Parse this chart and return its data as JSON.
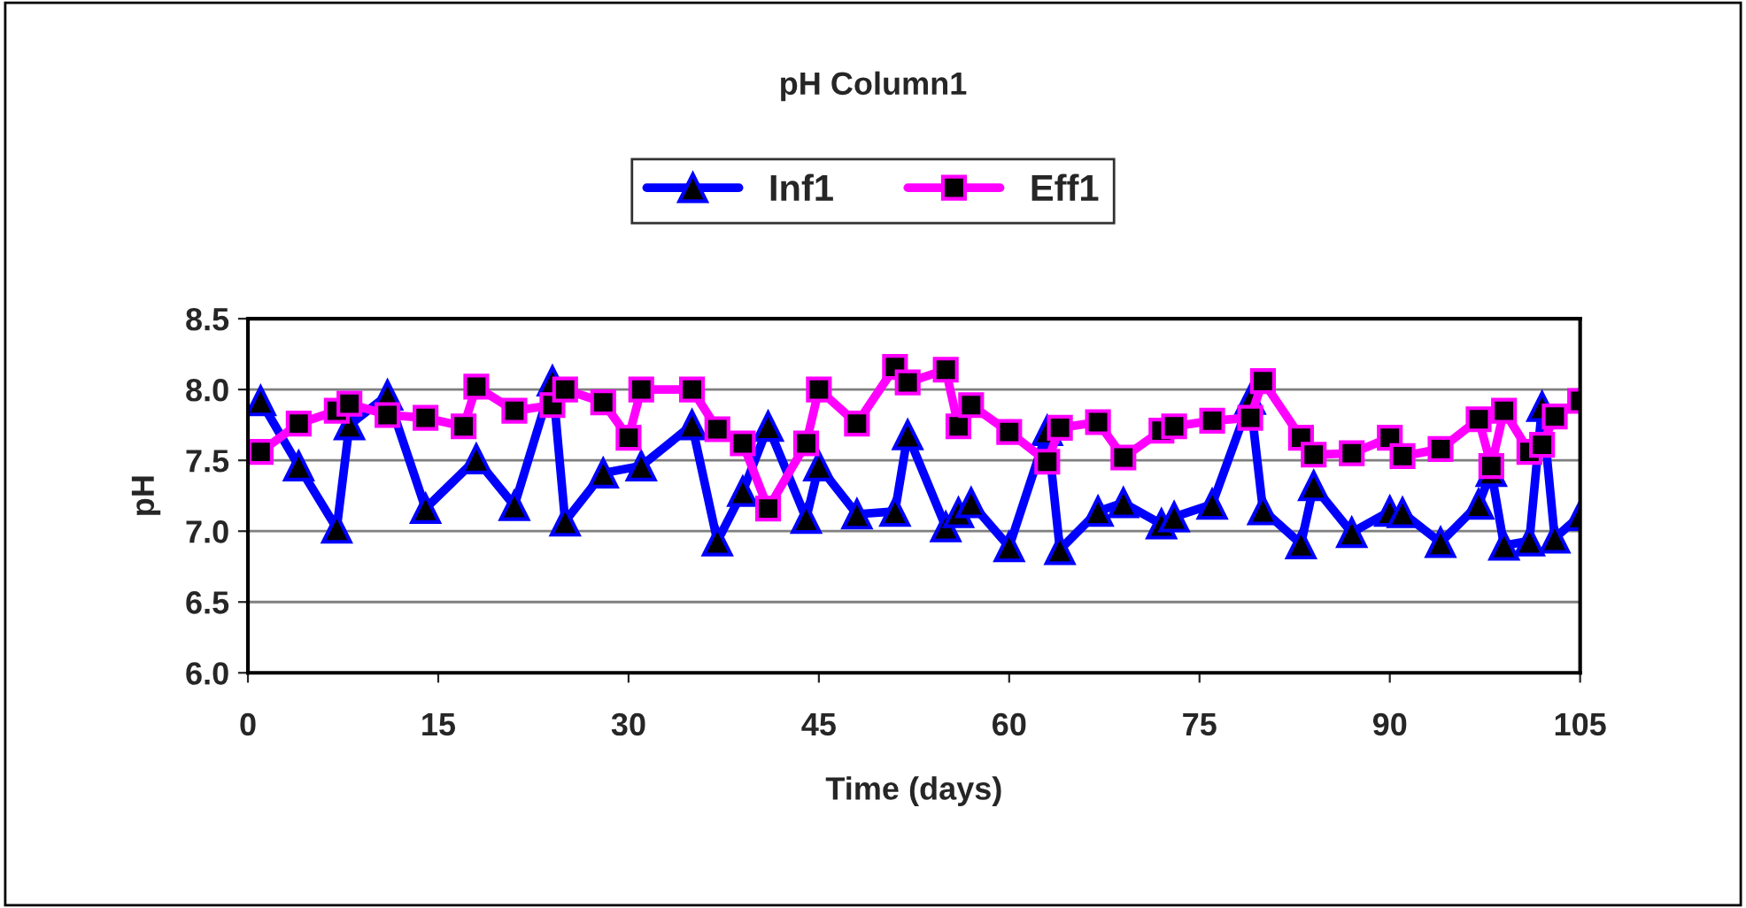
{
  "chart_data": {
    "type": "line",
    "title": "pH Column1",
    "xlabel": "Time (days)",
    "ylabel": "pH",
    "xlim": [
      0,
      105
    ],
    "xticks": [
      0,
      15,
      30,
      45,
      60,
      75,
      90,
      105
    ],
    "ylim": [
      6.0,
      8.5
    ],
    "yticks": [
      {
        "value": 6.0,
        "label": "6.0"
      },
      {
        "value": 6.5,
        "label": "6.5"
      },
      {
        "value": 7.0,
        "label": "7.0"
      },
      {
        "value": 7.5,
        "label": "7.5"
      },
      {
        "value": 8.0,
        "label": "8.0"
      },
      {
        "value": 8.5,
        "label": "8.5"
      }
    ],
    "grid": "y",
    "legend": "top",
    "line_style": "solid",
    "series": [
      {
        "name": "Inf1",
        "color": "#0000ff",
        "marker": "triangle",
        "x": [
          1,
          4,
          7,
          8,
          11,
          14,
          18,
          21,
          24,
          25,
          28,
          31,
          35,
          37,
          39,
          41,
          44,
          45,
          48,
          51,
          52,
          55,
          56,
          57,
          60,
          63,
          64,
          67,
          69,
          72,
          73,
          76,
          79,
          80,
          83,
          84,
          87,
          90,
          91,
          94,
          97,
          98,
          99,
          101,
          102,
          103,
          105
        ],
        "values": [
          7.92,
          7.46,
          7.02,
          7.75,
          7.96,
          7.16,
          7.51,
          7.18,
          8.06,
          7.07,
          7.41,
          7.46,
          7.75,
          6.93,
          7.28,
          7.74,
          7.09,
          7.46,
          7.12,
          7.14,
          7.68,
          7.03,
          7.13,
          7.2,
          6.89,
          7.71,
          6.87,
          7.14,
          7.2,
          7.05,
          7.1,
          7.19,
          7.93,
          7.15,
          6.91,
          7.32,
          6.99,
          7.14,
          7.13,
          6.92,
          7.19,
          7.42,
          6.9,
          6.93,
          7.88,
          6.95,
          7.11
        ]
      },
      {
        "name": "Eff1",
        "color": "#ff00ff",
        "marker": "square",
        "x": [
          1,
          4,
          7,
          8,
          11,
          14,
          17,
          18,
          21,
          24,
          25,
          28,
          30,
          31,
          35,
          37,
          39,
          41,
          44,
          45,
          48,
          51,
          52,
          55,
          56,
          57,
          60,
          63,
          64,
          67,
          69,
          72,
          73,
          76,
          79,
          80,
          83,
          84,
          87,
          90,
          91,
          94,
          97,
          98,
          99,
          101,
          102,
          103,
          105
        ],
        "values": [
          7.56,
          7.76,
          7.85,
          7.9,
          7.82,
          7.8,
          7.74,
          8.02,
          7.85,
          7.89,
          8.0,
          7.91,
          7.66,
          8.0,
          8.0,
          7.72,
          7.62,
          7.16,
          7.62,
          8.0,
          7.76,
          8.16,
          8.05,
          8.14,
          7.74,
          7.89,
          7.7,
          7.49,
          7.73,
          7.77,
          7.52,
          7.71,
          7.74,
          7.78,
          7.8,
          8.06,
          7.66,
          7.54,
          7.55,
          7.66,
          7.53,
          7.58,
          7.79,
          7.46,
          7.85,
          7.56,
          7.61,
          7.81,
          7.92
        ]
      }
    ]
  }
}
